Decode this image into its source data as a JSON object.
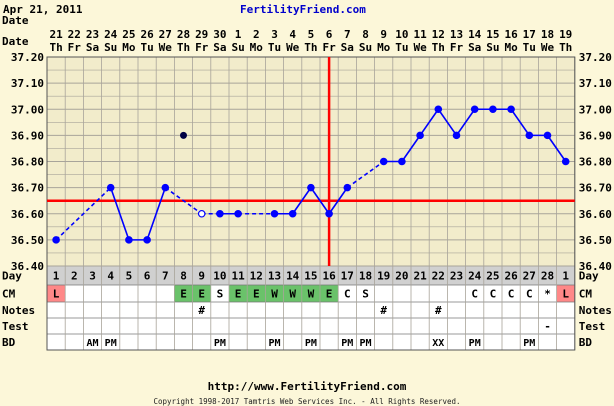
{
  "header": {
    "date": "Apr 21, 2011",
    "site": "FertilityFriend.com"
  },
  "footer": {
    "url": "http://www.FertilityFriend.com",
    "copyright": "Copyright 1998-2017 Tamtris Web Services Inc. - All Rights Reserved."
  },
  "colors": {
    "background": "#fcf7d9",
    "grid_fill": "#f2eccb",
    "grid_line": "#a8a49a",
    "line": "#0000ff",
    "coverline": "#ff0000",
    "ovulation_line": "#ff0000",
    "fertile_cell": "#6ac26a",
    "period_cell": "#ff8888",
    "day_row": "#d0d0d0"
  },
  "chart_data": {
    "type": "line",
    "title": "FertilityFriend.com",
    "row_labels": {
      "date": "Date",
      "day": "Day",
      "cm": "CM",
      "notes": "Notes",
      "test": "Test",
      "bd": "BD"
    },
    "dates": [
      "21",
      "22",
      "23",
      "24",
      "25",
      "26",
      "27",
      "28",
      "29",
      "30",
      "1",
      "2",
      "3",
      "4",
      "5",
      "6",
      "7",
      "8",
      "9",
      "10",
      "11",
      "12",
      "13",
      "14",
      "15",
      "16",
      "17",
      "18",
      "19"
    ],
    "weekdays": [
      "Th",
      "Fr",
      "Sa",
      "Su",
      "Mo",
      "Tu",
      "We",
      "Th",
      "Fr",
      "Sa",
      "Su",
      "Mo",
      "Tu",
      "We",
      "Th",
      "Fr",
      "Sa",
      "Su",
      "Mo",
      "Tu",
      "We",
      "Th",
      "Fr",
      "Sa",
      "Su",
      "Mo",
      "Tu",
      "We",
      "Th"
    ],
    "cycle_days": [
      "1",
      "2",
      "3",
      "4",
      "5",
      "6",
      "7",
      "8",
      "9",
      "10",
      "11",
      "12",
      "13",
      "14",
      "15",
      "16",
      "17",
      "18",
      "19",
      "20",
      "21",
      "22",
      "23",
      "24",
      "25",
      "26",
      "27",
      "28",
      "1"
    ],
    "yticks": [
      "36.40",
      "36.50",
      "36.60",
      "36.70",
      "36.80",
      "36.90",
      "37.00",
      "37.10",
      "37.20"
    ],
    "ylim": [
      36.4,
      37.2
    ],
    "temperatures": [
      36.5,
      null,
      null,
      36.7,
      36.5,
      36.5,
      36.7,
      36.9,
      36.6,
      36.6,
      36.6,
      null,
      36.6,
      36.6,
      36.7,
      36.6,
      36.7,
      null,
      36.8,
      36.8,
      36.9,
      37.0,
      36.9,
      37.0,
      37.0,
      37.0,
      36.9,
      36.9,
      36.8
    ],
    "open_points": [
      8
    ],
    "excluded_points": [
      7
    ],
    "coverline": 36.65,
    "ovulation_index": 15,
    "cm": [
      "L",
      "",
      "",
      "",
      "",
      "",
      "",
      "E",
      "E",
      "S",
      "E",
      "E",
      "W",
      "W",
      "W",
      "E",
      "C",
      "S",
      "",
      "",
      "",
      "",
      "",
      "C",
      "C",
      "C",
      "C",
      "*",
      "L"
    ],
    "notes": [
      "",
      "",
      "",
      "",
      "",
      "",
      "",
      "",
      "#",
      "",
      "",
      "",
      "",
      "",
      "",
      "",
      "",
      "",
      "#",
      "",
      "",
      "#",
      "",
      "",
      "",
      "",
      "",
      "",
      ""
    ],
    "test": [
      "",
      "",
      "",
      "",
      "",
      "",
      "",
      "",
      "",
      "",
      "",
      "",
      "",
      "",
      "",
      "",
      "",
      "",
      "",
      "",
      "",
      "",
      "",
      "",
      "",
      "",
      "",
      "-",
      ""
    ],
    "bd": [
      "",
      "",
      "AM",
      "PM",
      "",
      "",
      "",
      "",
      "",
      "PM",
      "",
      "",
      "PM",
      "",
      "PM",
      "",
      "PM",
      "PM",
      "",
      "",
      "",
      "XX",
      "",
      "PM",
      "",
      "",
      "PM",
      "",
      ""
    ],
    "fertile_cm": [
      "E",
      "W"
    ],
    "period_cm": [
      "L"
    ]
  }
}
